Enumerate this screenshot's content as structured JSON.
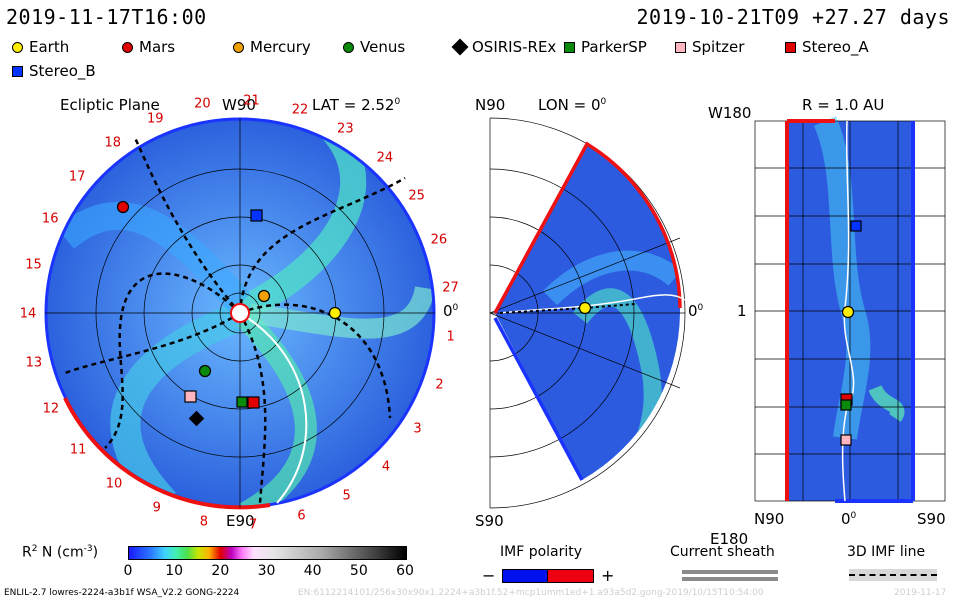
{
  "header": {
    "left_datetime": "2019-11-17T16:00",
    "right_datetime": "2019-10-21T09 +27.27 days"
  },
  "legend": [
    {
      "label": "Earth",
      "marker": "circle",
      "color": "#ffee00"
    },
    {
      "label": "Mars",
      "marker": "circle",
      "color": "#e00000"
    },
    {
      "label": "Mercury",
      "marker": "circle",
      "color": "#f0a000"
    },
    {
      "label": "Venus",
      "marker": "circle",
      "color": "#0a8a0a"
    },
    {
      "label": "OSIRIS-REx",
      "marker": "diamond",
      "color": "#000000"
    },
    {
      "label": "ParkerSP",
      "marker": "square",
      "color": "#0a8a0a"
    },
    {
      "label": "Spitzer",
      "marker": "square",
      "color": "#ffb6c1"
    },
    {
      "label": "Stereo_A",
      "marker": "square",
      "color": "#e00000"
    },
    {
      "label": "Stereo_B",
      "marker": "square",
      "color": "#0033ff"
    }
  ],
  "ecliptic_panel": {
    "title": "Ecliptic Plane",
    "top_label": "W90",
    "lat_label": "LAT = 2.52",
    "lat_unit": "0",
    "bottom_label": "E90",
    "right_label": "0",
    "right_unit": "0",
    "carrington_numbers": [
      "1",
      "2",
      "3",
      "4",
      "5",
      "6",
      "7",
      "8",
      "9",
      "10",
      "11",
      "12",
      "13",
      "14",
      "15",
      "16",
      "17",
      "18",
      "19",
      "20",
      "21",
      "22",
      "23",
      "24",
      "25",
      "26",
      "27"
    ]
  },
  "meridional_panel": {
    "top_left": "N90",
    "lon_label": "LON = 0",
    "lon_unit": "0",
    "bottom_left": "S90",
    "right_label": "0",
    "right_unit": "0"
  },
  "radial_panel": {
    "title": "R = 1.0 AU",
    "top_left": "W180",
    "mid_left": "1",
    "bottom_left": "E180",
    "x_ticks": [
      "N90",
      "0",
      "S90"
    ],
    "x_tick_unit": "0"
  },
  "colorbar": {
    "label": "R",
    "label_sup": "2",
    "label_rest": " N (cm",
    "label_exp": "-3",
    "label_end": ")",
    "ticks": [
      "0",
      "10",
      "20",
      "30",
      "40",
      "50",
      "60"
    ]
  },
  "imf_polarity": {
    "title": "IMF polarity",
    "minus": "−",
    "plus": "+",
    "colors": [
      "#0011ee",
      "#ee0011"
    ]
  },
  "current_sheath": {
    "title": "Current sheath"
  },
  "imf_line": {
    "title": "3D IMF line"
  },
  "footer": {
    "model": "ENLIL-2.7 lowres-2224-a3b1f WSA_V2.2 GONG-2224",
    "run_id": "EN:6112214101/256x30x90x1.2224+a3b1f.52+mcp1umm1ed+1.a93a5d2.gong-2019/10/15T10:54:00",
    "date": "2019-11-17"
  }
}
